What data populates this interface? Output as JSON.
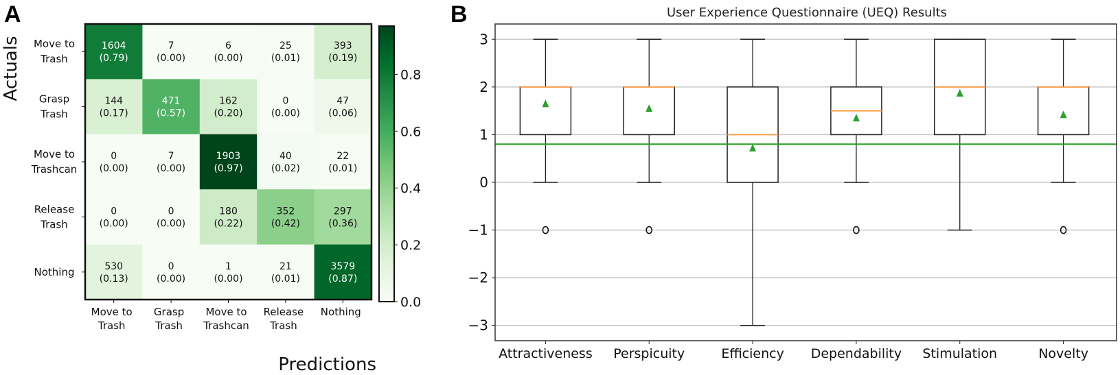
{
  "chart_data": [
    {
      "panel": "A",
      "type": "heatmap",
      "title": "",
      "xlabel": "Predictions",
      "ylabel": "Actuals",
      "x_categories": [
        [
          "Move to",
          "Trash"
        ],
        [
          "Grasp",
          "Trash"
        ],
        [
          "Move to",
          "Trashcan"
        ],
        [
          "Release",
          "Trash"
        ],
        [
          "Nothing"
        ]
      ],
      "y_categories": [
        [
          "Move to",
          "Trash"
        ],
        [
          "Grasp",
          "Trash"
        ],
        [
          "Move to",
          "Trashcan"
        ],
        [
          "Release",
          "Trash"
        ],
        [
          "Nothing"
        ]
      ],
      "counts": [
        [
          1604,
          7,
          6,
          25,
          393
        ],
        [
          144,
          471,
          162,
          0,
          47
        ],
        [
          0,
          7,
          1903,
          40,
          22
        ],
        [
          0,
          0,
          180,
          352,
          297
        ],
        [
          530,
          0,
          1,
          21,
          3579
        ]
      ],
      "fractions": [
        [
          "0.79",
          "0.00",
          "0.00",
          "0.01",
          "0.19"
        ],
        [
          "0.17",
          "0.57",
          "0.20",
          "0.00",
          "0.06"
        ],
        [
          "0.00",
          "0.00",
          "0.97",
          "0.02",
          "0.01"
        ],
        [
          "0.00",
          "0.00",
          "0.22",
          "0.42",
          "0.36"
        ],
        [
          "0.13",
          "0.00",
          "0.00",
          "0.01",
          "0.87"
        ]
      ],
      "colorbar": {
        "min": 0.0,
        "max": 0.97,
        "ticks": [
          "0.0",
          "0.2",
          "0.4",
          "0.6",
          "0.8"
        ],
        "colormap": "Greens"
      }
    },
    {
      "panel": "B",
      "type": "box",
      "title": "User Experience Questionnaire (UEQ) Results",
      "xlabel": "",
      "ylabel": "",
      "ylim": [
        -3.32,
        3.32
      ],
      "yticks": [
        "3",
        "2",
        "1",
        "0",
        "−1",
        "−2",
        "−3"
      ],
      "ytick_values": [
        3,
        2,
        1,
        0,
        -1,
        -2,
        -3
      ],
      "grid": "horizontal",
      "reference_line": {
        "value": 0.8,
        "color": "#2ca02c"
      },
      "median_color": "#ff9f4a",
      "mean_color": "#2ca02c",
      "categories": [
        "Attractiveness",
        "Perspicuity",
        "Efficiency",
        "Dependability",
        "Stimulation",
        "Novelty"
      ],
      "boxes": [
        {
          "whislo": 0,
          "q1": 1,
          "med": 2,
          "q3": 2,
          "whishi": 3,
          "mean": 1.65,
          "fliers": [
            -1
          ]
        },
        {
          "whislo": 0,
          "q1": 1,
          "med": 2,
          "q3": 2,
          "whishi": 3,
          "mean": 1.55,
          "fliers": [
            -1
          ]
        },
        {
          "whislo": -3,
          "q1": 0,
          "med": 1,
          "q3": 2,
          "whishi": 3,
          "mean": 0.72,
          "fliers": []
        },
        {
          "whislo": 0,
          "q1": 1,
          "med": 1.5,
          "q3": 2,
          "whishi": 3,
          "mean": 1.35,
          "fliers": [
            -1
          ]
        },
        {
          "whislo": -1,
          "q1": 1,
          "med": 2,
          "q3": 3,
          "whishi": 3,
          "mean": 1.87,
          "fliers": []
        },
        {
          "whislo": 0,
          "q1": 1,
          "med": 2,
          "q3": 2,
          "whishi": 3,
          "mean": 1.42,
          "fliers": [
            -1
          ]
        }
      ]
    }
  ],
  "labels": {
    "panel_a": "A",
    "panel_b": "B"
  }
}
